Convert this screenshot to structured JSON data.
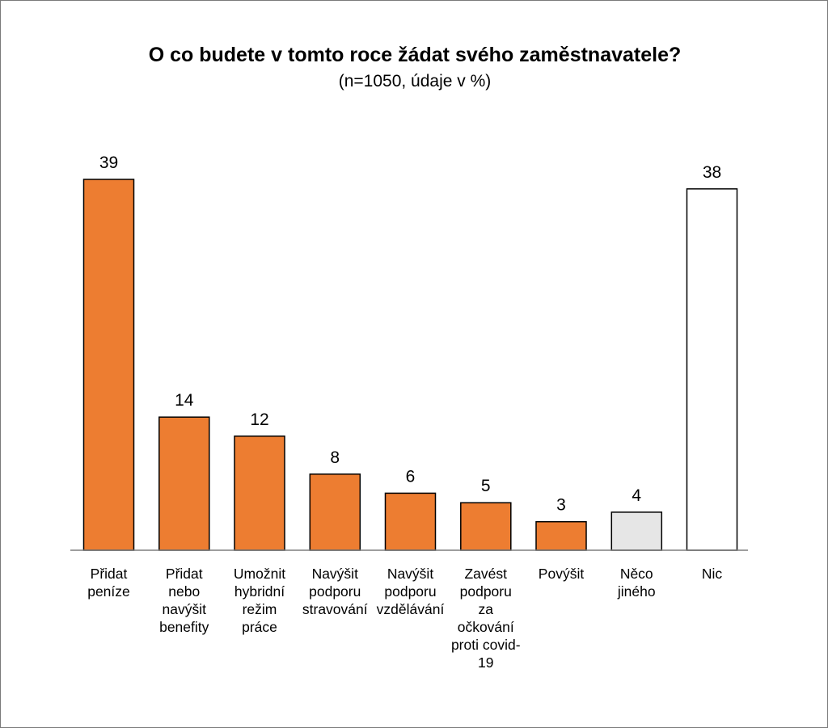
{
  "chart_data": {
    "type": "bar",
    "title": "O co budete v tomto roce žádat svého zaměstnavatele?",
    "subtitle": "(n=1050, údaje v %)",
    "categories": [
      [
        "Přidat",
        "peníze"
      ],
      [
        "Přidat",
        "nebo",
        "navýšit",
        "benefity"
      ],
      [
        "Umožnit",
        "hybridní",
        "režim",
        "práce"
      ],
      [
        "Navýšit",
        "podporu",
        "stravování"
      ],
      [
        "Navýšit",
        "podporu",
        "vzdělávání"
      ],
      [
        "Zavést",
        "podporu",
        "za",
        "očkování",
        "proti covid-",
        "19"
      ],
      [
        "Povýšit"
      ],
      [
        "Něco",
        "jiného"
      ],
      [
        "Nic"
      ]
    ],
    "values": [
      39,
      14,
      12,
      8,
      6,
      5,
      3,
      4,
      38
    ],
    "colors": [
      "#ed7d31",
      "#ed7d31",
      "#ed7d31",
      "#ed7d31",
      "#ed7d31",
      "#ed7d31",
      "#ed7d31",
      "#e6e6e6",
      "#ffffff"
    ],
    "ylim": [
      0,
      39
    ],
    "grid": false,
    "legend": "none"
  }
}
